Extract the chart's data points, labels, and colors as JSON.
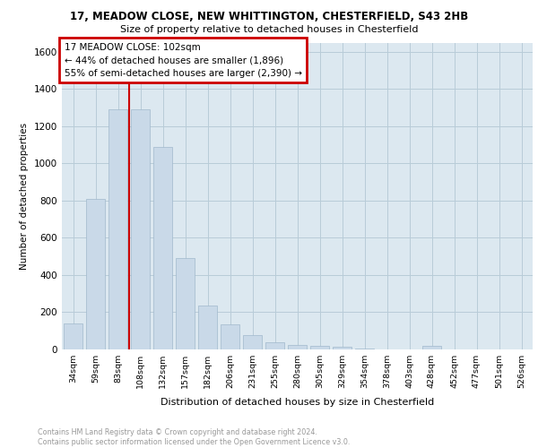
{
  "title_line1": "17, MEADOW CLOSE, NEW WHITTINGTON, CHESTERFIELD, S43 2HB",
  "title_line2": "Size of property relative to detached houses in Chesterfield",
  "xlabel": "Distribution of detached houses by size in Chesterfield",
  "ylabel": "Number of detached properties",
  "categories": [
    "34sqm",
    "59sqm",
    "83sqm",
    "108sqm",
    "132sqm",
    "157sqm",
    "182sqm",
    "206sqm",
    "231sqm",
    "255sqm",
    "280sqm",
    "305sqm",
    "329sqm",
    "354sqm",
    "378sqm",
    "403sqm",
    "428sqm",
    "452sqm",
    "477sqm",
    "501sqm",
    "526sqm"
  ],
  "values": [
    140,
    810,
    1290,
    1290,
    1090,
    490,
    235,
    135,
    75,
    40,
    25,
    20,
    15,
    5,
    2,
    1,
    20,
    0,
    0,
    0,
    0
  ],
  "bar_color": "#c9d9e8",
  "bar_edge_color": "#a0b8cc",
  "grid_color": "#b8ccd8",
  "background_color": "#dce8f0",
  "red_line_index": 2,
  "red_line_color": "#cc0000",
  "annotation_text": "17 MEADOW CLOSE: 102sqm\n← 44% of detached houses are smaller (1,896)\n55% of semi-detached houses are larger (2,390) →",
  "annotation_box_color": "#ffffff",
  "annotation_box_edge": "#cc0000",
  "footer": "Contains HM Land Registry data © Crown copyright and database right 2024.\nContains public sector information licensed under the Open Government Licence v3.0.",
  "ylim": [
    0,
    1650
  ],
  "yticks": [
    0,
    200,
    400,
    600,
    800,
    1000,
    1200,
    1400,
    1600
  ]
}
